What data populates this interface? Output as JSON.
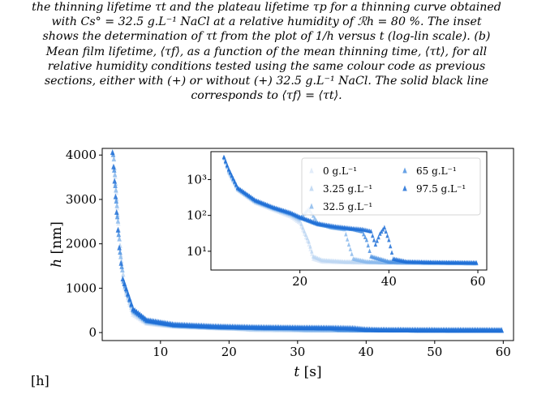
{
  "caption": {
    "lines": [
      "the thinning lifetime τt and the plateau lifetime τp for a thinning curve obtained",
      "with Cs° = 32.5 g.L⁻¹ NaCl at a relative humidity of ℛh = 80 %. The inset",
      "shows the determination of τt from the plot of 1/h versus t (log-lin scale). (b)",
      "Mean film lifetime, ⟨τf⟩, as a function of the mean thinning time, ⟨τt⟩, for all",
      "relative humidity conditions tested using the same colour code as previous",
      "sections, either with (+) or without (+) 32.5 g.L⁻¹ NaCl. The solid black line",
      "corresponds to ⟨τf⟩ = ⟨τt⟩."
    ]
  },
  "panel_tag": "[h]",
  "chart_data": [
    {
      "type": "scatter",
      "xlabel": "t [s]",
      "ylabel": "h [nm]",
      "xlim": [
        1.5,
        61.5
      ],
      "ylim": [
        -180,
        4150
      ],
      "xticks": [
        10,
        20,
        30,
        40,
        50,
        60
      ],
      "yticks": [
        0,
        1000,
        2000,
        3000,
        4000
      ],
      "grid": false,
      "marker": "triangle",
      "series": [
        {
          "name": "0 g.L⁻¹",
          "color": "#dde9f8",
          "points": [
            [
              3.4,
              3500
            ],
            [
              3.7,
              2800
            ],
            [
              4.0,
              2100
            ],
            [
              4.4,
              1400
            ],
            [
              5.0,
              850
            ],
            [
              6,
              400
            ],
            [
              8,
              200
            ],
            [
              12,
              130
            ],
            [
              18,
              95
            ],
            [
              23,
              75
            ],
            [
              24,
              60
            ],
            [
              30,
              50
            ],
            [
              40,
              45
            ],
            [
              50,
              42
            ],
            [
              60,
              40
            ]
          ]
        },
        {
          "name": "3.25 g.L⁻¹",
          "color": "#bcd6f2",
          "points": [
            [
              3.3,
              3700
            ],
            [
              3.6,
              3000
            ],
            [
              3.9,
              2300
            ],
            [
              4.3,
              1600
            ],
            [
              4.8,
              1000
            ],
            [
              6,
              450
            ],
            [
              8,
              220
            ],
            [
              12,
              140
            ],
            [
              18,
              100
            ],
            [
              22,
              80
            ],
            [
              23,
              65
            ],
            [
              30,
              55
            ],
            [
              40,
              48
            ],
            [
              50,
              44
            ],
            [
              60,
              42
            ]
          ]
        },
        {
          "name": "32.5 g.L⁻¹",
          "color": "#8bbaec",
          "points": [
            [
              3.2,
              3900
            ],
            [
              3.5,
              3200
            ],
            [
              3.8,
              2500
            ],
            [
              4.2,
              1700
            ],
            [
              4.7,
              1100
            ],
            [
              6,
              480
            ],
            [
              8,
              240
            ],
            [
              12,
              150
            ],
            [
              18,
              110
            ],
            [
              24,
              90
            ],
            [
              28,
              80
            ],
            [
              30,
              70
            ],
            [
              31,
              55
            ],
            [
              40,
              50
            ],
            [
              50,
              45
            ],
            [
              60,
              42
            ]
          ]
        },
        {
          "name": "65 g.L⁻¹",
          "color": "#4f93e2",
          "points": [
            [
              3.1,
              4000
            ],
            [
              3.4,
              3300
            ],
            [
              3.7,
              2600
            ],
            [
              4.1,
              1800
            ],
            [
              4.6,
              1150
            ],
            [
              6,
              500
            ],
            [
              8,
              260
            ],
            [
              12,
              160
            ],
            [
              18,
              120
            ],
            [
              24,
              100
            ],
            [
              30,
              95
            ],
            [
              35,
              90
            ],
            [
              36,
              60
            ],
            [
              40,
              50
            ],
            [
              50,
              45
            ],
            [
              60,
              42
            ]
          ]
        },
        {
          "name": "97.5 g.L⁻¹",
          "color": "#1f6fd6",
          "points": [
            [
              3.0,
              4050
            ],
            [
              3.3,
              3400
            ],
            [
              3.6,
              2700
            ],
            [
              4.0,
              1900
            ],
            [
              4.5,
              1200
            ],
            [
              6,
              520
            ],
            [
              8,
              270
            ],
            [
              12,
              170
            ],
            [
              18,
              130
            ],
            [
              24,
              110
            ],
            [
              30,
              100
            ],
            [
              36,
              95
            ],
            [
              38,
              90
            ],
            [
              40,
              60
            ],
            [
              42,
              50
            ],
            [
              50,
              45
            ],
            [
              60,
              42
            ]
          ]
        }
      ]
    },
    {
      "type": "scatter",
      "inset": true,
      "yscale": "log",
      "xlim": [
        0,
        62
      ],
      "ylim": [
        3,
        6000
      ],
      "xticks": [
        20,
        40,
        60
      ],
      "yticks": [
        10,
        100,
        1000
      ],
      "ytick_labels": [
        "10¹",
        "10²",
        "10³"
      ],
      "legend": {
        "position": "top-right",
        "entries": [
          "0 g.L⁻¹",
          "65 g.L⁻¹",
          "3.25 g.L⁻¹",
          "97.5 g.L⁻¹",
          "32.5 g.L⁻¹"
        ]
      },
      "series": [
        {
          "name": "0 g.L⁻¹",
          "color": "#dde9f8",
          "points": [
            [
              3.2,
              3500
            ],
            [
              4,
              1500
            ],
            [
              6,
              500
            ],
            [
              10,
              220
            ],
            [
              14,
              140
            ],
            [
              18,
              90
            ],
            [
              20,
              60
            ],
            [
              21,
              30
            ],
            [
              22,
              15
            ],
            [
              23,
              6
            ],
            [
              25,
              5
            ],
            [
              30,
              4.8
            ],
            [
              40,
              4.6
            ],
            [
              50,
              4.5
            ],
            [
              60,
              4.4
            ]
          ]
        },
        {
          "name": "3.25 g.L⁻¹",
          "color": "#bcd6f2",
          "points": [
            [
              3.1,
              3700
            ],
            [
              4,
              1600
            ],
            [
              6,
              520
            ],
            [
              10,
              230
            ],
            [
              14,
              150
            ],
            [
              18,
              100
            ],
            [
              20,
              70
            ],
            [
              21,
              35
            ],
            [
              22,
              18
            ],
            [
              23,
              7
            ],
            [
              25,
              5.5
            ],
            [
              30,
              5
            ],
            [
              40,
              4.8
            ],
            [
              50,
              4.6
            ],
            [
              60,
              4.5
            ]
          ]
        },
        {
          "name": "32.5 g.L⁻¹",
          "color": "#8bbaec",
          "points": [
            [
              3,
              3900
            ],
            [
              4,
              1700
            ],
            [
              6,
              540
            ],
            [
              10,
              240
            ],
            [
              14,
              155
            ],
            [
              18,
              105
            ],
            [
              20,
              80
            ],
            [
              22,
              150
            ],
            [
              24,
              60
            ],
            [
              27,
              45
            ],
            [
              30,
              40
            ],
            [
              31,
              15
            ],
            [
              32,
              6
            ],
            [
              35,
              5
            ],
            [
              40,
              4.8
            ],
            [
              50,
              4.6
            ],
            [
              60,
              4.5
            ]
          ]
        },
        {
          "name": "65 g.L⁻¹",
          "color": "#4f93e2",
          "points": [
            [
              3,
              4000
            ],
            [
              4,
              1800
            ],
            [
              6,
              560
            ],
            [
              10,
              250
            ],
            [
              14,
              160
            ],
            [
              18,
              110
            ],
            [
              20,
              85
            ],
            [
              24,
              55
            ],
            [
              28,
              45
            ],
            [
              32,
              40
            ],
            [
              34,
              35
            ],
            [
              35,
              20
            ],
            [
              36,
              7
            ],
            [
              40,
              5
            ],
            [
              50,
              4.8
            ],
            [
              60,
              4.6
            ]
          ]
        },
        {
          "name": "97.5 g.L⁻¹",
          "color": "#1f6fd6",
          "points": [
            [
              2.9,
              4100
            ],
            [
              4,
              1900
            ],
            [
              6,
              580
            ],
            [
              10,
              260
            ],
            [
              14,
              165
            ],
            [
              18,
              115
            ],
            [
              20,
              88
            ],
            [
              24,
              58
            ],
            [
              28,
              48
            ],
            [
              32,
              42
            ],
            [
              34,
              40
            ],
            [
              36,
              35
            ],
            [
              37,
              15
            ],
            [
              38,
              30
            ],
            [
              39,
              45
            ],
            [
              40,
              20
            ],
            [
              41,
              6
            ],
            [
              44,
              5
            ],
            [
              50,
              4.8
            ],
            [
              60,
              4.7
            ]
          ]
        }
      ]
    }
  ]
}
